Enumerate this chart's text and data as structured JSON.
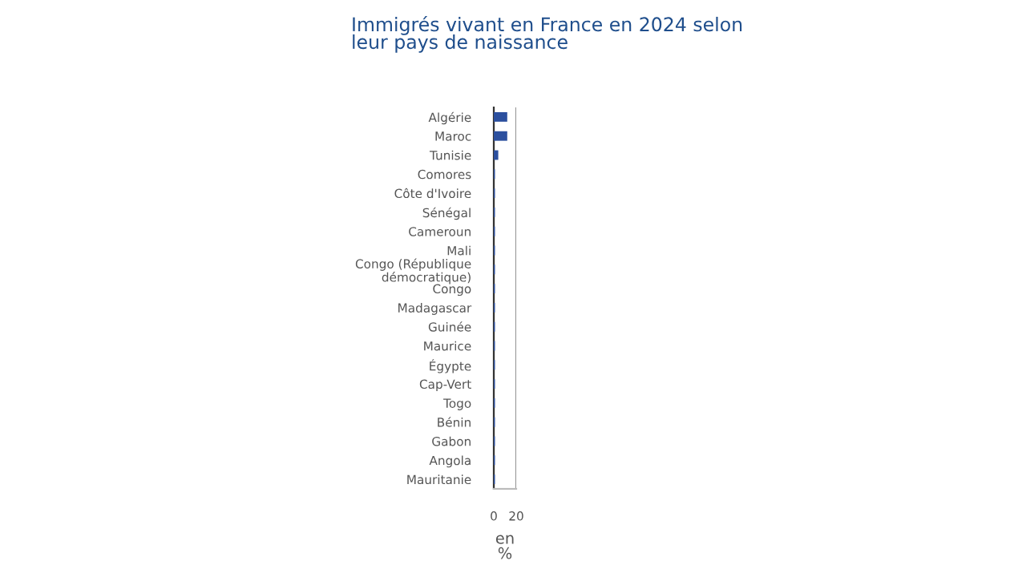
{
  "chart_data": {
    "type": "bar",
    "orientation": "horizontal",
    "title": "Immigrés vivant en France en 2024 selon\nleur pays de naissance",
    "xlabel": "en\n%",
    "categories": [
      "Algérie",
      "Maroc",
      "Tunisie",
      "Comores",
      "Côte d'Ivoire",
      "Sénégal",
      "Cameroun",
      "Mali",
      "Congo (République\ndémocratique)",
      "Congo",
      "Madagascar",
      "Guinée",
      "Maurice",
      "Égypte",
      "Cap-Vert",
      "Togo",
      "Bénin",
      "Gabon",
      "Angola",
      "Mauritanie"
    ],
    "series": [
      {
        "color": "#2b4f9e",
        "values": [
          12,
          12,
          4,
          1,
          1,
          1,
          1,
          1,
          1,
          1,
          1,
          1,
          1,
          1,
          1,
          1,
          1,
          1,
          1,
          1
        ]
      }
    ],
    "xlim": [
      0,
      20
    ],
    "xticks": [
      0,
      20
    ],
    "grid": "x"
  }
}
